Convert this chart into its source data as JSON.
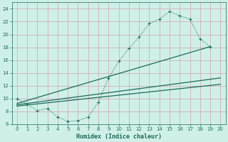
{
  "xlabel": "Humidex (Indice chaleur)",
  "bg_color": "#cff0e8",
  "grid_color": "#d4a0b0",
  "line_color": "#1a6b5a",
  "xlim": [
    -0.5,
    20.5
  ],
  "ylim": [
    6,
    25
  ],
  "xticks": [
    0,
    1,
    2,
    3,
    4,
    5,
    6,
    7,
    8,
    9,
    10,
    11,
    12,
    13,
    14,
    15,
    16,
    17,
    18,
    19,
    20
  ],
  "yticks": [
    6,
    8,
    10,
    12,
    14,
    16,
    18,
    20,
    22,
    24
  ],
  "curve_x": [
    0,
    1,
    2,
    3,
    4,
    5,
    6,
    7,
    8,
    9,
    10,
    11,
    12,
    13,
    14,
    15,
    16,
    17,
    18,
    19
  ],
  "curve_y": [
    9.9,
    9.1,
    8.1,
    8.4,
    7.1,
    6.4,
    6.5,
    7.1,
    9.4,
    13.2,
    15.8,
    17.8,
    19.6,
    21.7,
    22.4,
    23.6,
    22.9,
    22.4,
    19.3,
    18.1
  ],
  "line1_x": [
    0,
    19
  ],
  "line1_y": [
    9.2,
    18.1
  ],
  "line2_x": [
    0,
    20
  ],
  "line2_y": [
    9.0,
    13.2
  ],
  "line3_x": [
    0,
    20
  ],
  "line3_y": [
    8.8,
    12.2
  ]
}
